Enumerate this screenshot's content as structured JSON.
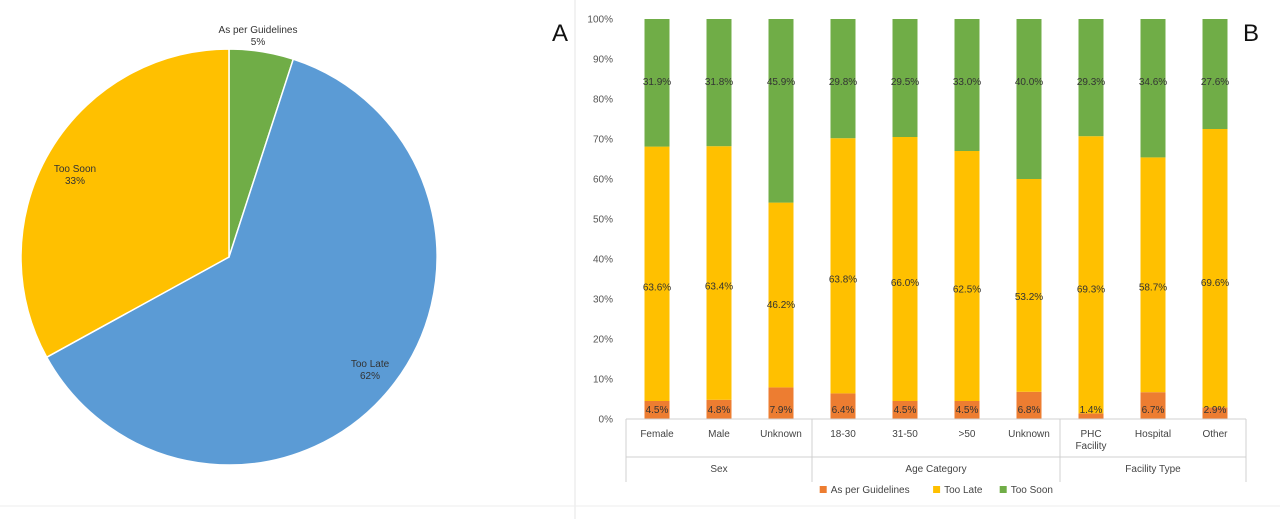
{
  "panels": {
    "left_letter": "A",
    "right_letter": "B"
  },
  "chart_data": [
    {
      "type": "pie",
      "slices": [
        {
          "label": "As per Guidelines",
          "value": 5,
          "display": "5%",
          "color": "#70ad47"
        },
        {
          "label": "Too Late",
          "value": 62,
          "display": "62%",
          "color": "#5b9bd5"
        },
        {
          "label": "Too Soon",
          "value": 33,
          "display": "33%",
          "color": "#ffc000"
        }
      ]
    },
    {
      "type": "bar",
      "stacked": true,
      "categories": [
        "Female",
        "Male",
        "Unknown",
        "18-30",
        "31-50",
        ">50",
        "Unknown",
        "PHC Facility",
        "Hospital",
        "Other"
      ],
      "groups": [
        {
          "name": "Sex",
          "count": 3
        },
        {
          "name": "Age Category",
          "count": 4
        },
        {
          "name": "Facility Type",
          "count": 3
        }
      ],
      "series": [
        {
          "name": "As per Guidelines",
          "color": "#ed7d31",
          "values": [
            4.5,
            4.8,
            7.9,
            6.4,
            4.5,
            4.5,
            6.8,
            1.4,
            6.7,
            2.9
          ],
          "labels": [
            "4.5%",
            "4.8%",
            "7.9%",
            "6.4%",
            "4.5%",
            "4.5%",
            "6.8%",
            "1.4%",
            "6.7%",
            "2.9%"
          ]
        },
        {
          "name": "Too Late",
          "color": "#ffc000",
          "values": [
            63.6,
            63.4,
            46.2,
            63.8,
            66.0,
            62.5,
            53.2,
            69.3,
            58.7,
            69.6
          ],
          "labels": [
            "63.6%",
            "63.4%",
            "46.2%",
            "63.8%",
            "66.0%",
            "62.5%",
            "53.2%",
            "69.3%",
            "58.7%",
            "69.6%"
          ]
        },
        {
          "name": "Too Soon",
          "color": "#70ad47",
          "values": [
            31.9,
            31.8,
            45.9,
            29.8,
            29.5,
            33.0,
            40.0,
            29.3,
            34.6,
            27.6
          ],
          "labels": [
            "31.9%",
            "31.8%",
            "45.9%",
            "29.8%",
            "29.5%",
            "33.0%",
            "40.0%",
            "29.3%",
            "34.6%",
            "27.6%"
          ]
        }
      ],
      "ylim": [
        0,
        100
      ],
      "yticks": [
        0,
        10,
        20,
        30,
        40,
        50,
        60,
        70,
        80,
        90,
        100
      ],
      "ytick_labels": [
        "0%",
        "10%",
        "20%",
        "30%",
        "40%",
        "50%",
        "60%",
        "70%",
        "80%",
        "90%",
        "100%"
      ],
      "legend": [
        "As per Guidelines",
        "Too Late",
        "Too Soon"
      ],
      "legend_position": "bottom",
      "grid": false
    }
  ]
}
